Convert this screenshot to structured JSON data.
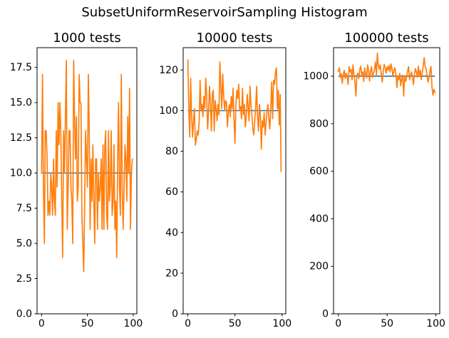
{
  "figure": {
    "suptitle": "SubsetUniformReservoirSampling Histogram",
    "background": "#ffffff"
  },
  "colors": {
    "series": "#ff7f0e",
    "expected_line": "#1f77b4",
    "axis": "#000000",
    "tick_text": "#000000"
  },
  "chart_data": [
    {
      "type": "line",
      "title": "1000 tests",
      "xlabel": "",
      "ylabel": "",
      "legend": "none",
      "grid": false,
      "xlim": [
        -4.95,
        103.95
      ],
      "ylim": [
        0,
        18.9
      ],
      "xticks": [
        0,
        50,
        100
      ],
      "xtick_labels": [
        "0",
        "50",
        "100"
      ],
      "yticks": [
        0,
        2.5,
        5,
        7.5,
        10,
        12.5,
        15,
        17.5
      ],
      "ytick_labels": [
        "0.0",
        "2.5",
        "5.0",
        "7.5",
        "10.0",
        "12.5",
        "15.0",
        "17.5"
      ],
      "expected": 10,
      "x_start": 0,
      "values": [
        10,
        17,
        9,
        5,
        13,
        13,
        11,
        7,
        8,
        7,
        10,
        9,
        7,
        11,
        8,
        7,
        13,
        9,
        15,
        12,
        15,
        13,
        8,
        4,
        13,
        10,
        14,
        18,
        6,
        9,
        13,
        13,
        9,
        8,
        5,
        18,
        14,
        11,
        14,
        8,
        9,
        17,
        15,
        15,
        7,
        5,
        3,
        8,
        13,
        11,
        9,
        17,
        13,
        6,
        11,
        8,
        12,
        8,
        5,
        11,
        11,
        6,
        10,
        8,
        9,
        11,
        6,
        12,
        6,
        12,
        13,
        7,
        6,
        13,
        8,
        9,
        13,
        7,
        8,
        12,
        6,
        8,
        4,
        11,
        15,
        9,
        7,
        17,
        9,
        6,
        9,
        12,
        11,
        8,
        14,
        10,
        16,
        6,
        10,
        11
      ]
    },
    {
      "type": "line",
      "title": "10000 tests",
      "xlabel": "",
      "ylabel": "",
      "legend": "none",
      "grid": false,
      "xlim": [
        -4.95,
        103.95
      ],
      "ylim": [
        0,
        131
      ],
      "xticks": [
        0,
        50,
        100
      ],
      "xtick_labels": [
        "0",
        "50",
        "100"
      ],
      "yticks": [
        0,
        20,
        40,
        60,
        80,
        100,
        120
      ],
      "ytick_labels": [
        "0",
        "20",
        "40",
        "60",
        "80",
        "100",
        "120"
      ],
      "expected": 100,
      "x_start": 0,
      "values": [
        125,
        101,
        87,
        116,
        98,
        87,
        95,
        101,
        83,
        86,
        90,
        88,
        94,
        115,
        100,
        103,
        97,
        107,
        101,
        116,
        108,
        91,
        99,
        112,
        104,
        90,
        108,
        110,
        90,
        105,
        101,
        95,
        103,
        98,
        124,
        112,
        101,
        118,
        108,
        100,
        105,
        104,
        92,
        99,
        103,
        97,
        107,
        101,
        111,
        96,
        84,
        103,
        110,
        106,
        113,
        100,
        102,
        96,
        111,
        98,
        103,
        92,
        97,
        108,
        102,
        95,
        112,
        103,
        98,
        91,
        88,
        95,
        102,
        112,
        97,
        90,
        103,
        98,
        81,
        95,
        92,
        99,
        88,
        94,
        100,
        103,
        96,
        91,
        101,
        114,
        96,
        115,
        113,
        119,
        121,
        101,
        110,
        93,
        108,
        70
      ]
    },
    {
      "type": "line",
      "title": "100000 tests",
      "xlabel": "",
      "ylabel": "",
      "legend": "none",
      "grid": false,
      "xlim": [
        -4.95,
        103.95
      ],
      "ylim": [
        0,
        1120
      ],
      "xticks": [
        0,
        50,
        100
      ],
      "xtick_labels": [
        "0",
        "50",
        "100"
      ],
      "yticks": [
        0,
        200,
        400,
        600,
        800,
        1000
      ],
      "ytick_labels": [
        "0",
        "200",
        "400",
        "600",
        "800",
        "1000"
      ],
      "expected": 1000,
      "x_start": 0,
      "values": [
        1020,
        1035,
        995,
        1010,
        970,
        1005,
        1025,
        990,
        1012,
        1000,
        965,
        1040,
        1018,
        1028,
        985,
        1048,
        1005,
        975,
        916,
        1005,
        1012,
        990,
        1030,
        1042,
        1000,
        1018,
        978,
        1035,
        1008,
        992,
        1048,
        1025,
        980,
        1022,
        1040,
        995,
        1010,
        1028,
        1060,
        1005,
        1098,
        1042,
        1030,
        1048,
        1008,
        975,
        1022,
        1050,
        1035,
        1012,
        1040,
        1025,
        1045,
        1018,
        1052,
        1030,
        998,
        1025,
        1035,
        1010,
        952,
        1000,
        985,
        1012,
        960,
        990,
        1005,
        916,
        1002,
        978,
        995,
        1022,
        1040,
        985,
        1005,
        1018,
        995,
        965,
        1008,
        1032,
        1018,
        995,
        1042,
        1000,
        1025,
        985,
        1012,
        1045,
        1078,
        1040,
        1030,
        1000,
        975,
        995,
        1020,
        1040,
        955,
        920,
        945,
        930
      ]
    }
  ]
}
